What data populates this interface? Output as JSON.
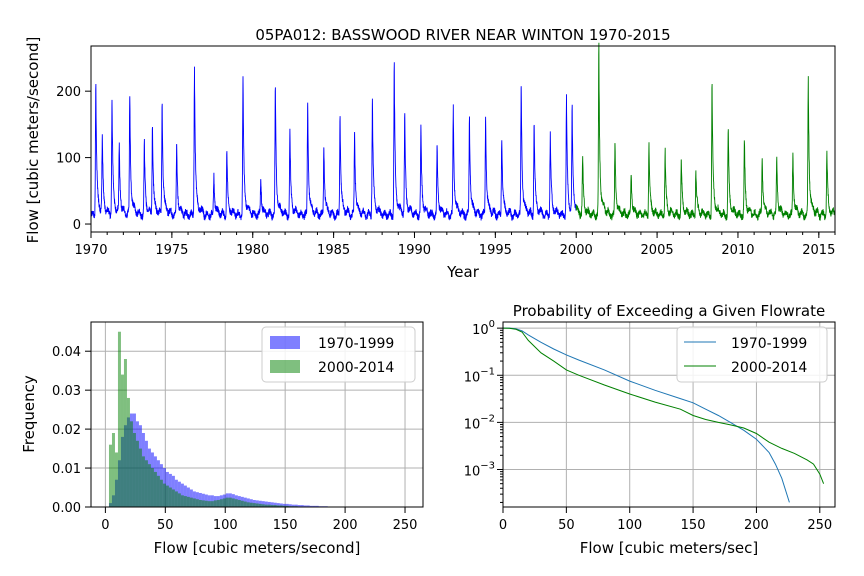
{
  "chart_data": [
    {
      "id": "timeseries",
      "type": "line",
      "title": "05PA012: BASSWOOD RIVER NEAR WINTON 1970-2015",
      "xlabel": "Year",
      "ylabel": "Flow [cubic meters/second]",
      "xlim": [
        1970,
        2016
      ],
      "ylim": [
        -12,
        268
      ],
      "xticks": [
        1970,
        1975,
        1980,
        1985,
        1990,
        1995,
        2000,
        2005,
        2010,
        2015
      ],
      "yticks": [
        0,
        100,
        200
      ],
      "grid": false,
      "series": [
        {
          "color": "#0000ff",
          "start": 1970,
          "end": 2000,
          "peaks": [
            [
              1970.3,
              199
            ],
            [
              1970.7,
              110
            ],
            [
              1971.3,
              172
            ],
            [
              1971.75,
              100
            ],
            [
              1972.4,
              178
            ],
            [
              1973.3,
              110
            ],
            [
              1973.8,
              135
            ],
            [
              1974.4,
              175
            ],
            [
              1975.3,
              105
            ],
            [
              1976.4,
              222
            ],
            [
              1977.6,
              60
            ],
            [
              1978.4,
              95
            ],
            [
              1979.4,
              205
            ],
            [
              1980.5,
              55
            ],
            [
              1981.4,
              188
            ],
            [
              1982.3,
              125
            ],
            [
              1983.4,
              170
            ],
            [
              1984.4,
              105
            ],
            [
              1985.4,
              150
            ],
            [
              1986.3,
              125
            ],
            [
              1987.4,
              175
            ],
            [
              1988.75,
              225
            ],
            [
              1989.4,
              150
            ],
            [
              1990.4,
              130
            ],
            [
              1991.4,
              100
            ],
            [
              1992.4,
              160
            ],
            [
              1993.4,
              150
            ],
            [
              1994.4,
              150
            ],
            [
              1995.4,
              120
            ],
            [
              1996.6,
              197
            ],
            [
              1997.4,
              140
            ],
            [
              1998.4,
              120
            ],
            [
              1999.4,
              175
            ],
            [
              1999.75,
              150
            ]
          ]
        },
        {
          "color": "#008000",
          "start": 2000,
          "end": 2016,
          "peaks": [
            [
              2000.4,
              84
            ],
            [
              2001.4,
              252
            ],
            [
              2002.4,
              110
            ],
            [
              2003.4,
              65
            ],
            [
              2004.5,
              107
            ],
            [
              2005.5,
              95
            ],
            [
              2006.5,
              80
            ],
            [
              2007.4,
              70
            ],
            [
              2008.4,
              197
            ],
            [
              2009.4,
              130
            ],
            [
              2010.4,
              110
            ],
            [
              2011.5,
              90
            ],
            [
              2012.4,
              85
            ],
            [
              2013.4,
              95
            ],
            [
              2014.35,
              205
            ],
            [
              2015.5,
              94
            ]
          ]
        }
      ]
    },
    {
      "id": "histogram",
      "type": "bar",
      "title": "",
      "xlabel": "Flow [cubic meters/second]",
      "ylabel": "Frequency",
      "xlim": [
        -12,
        265
      ],
      "ylim": [
        0,
        0.0475
      ],
      "xticks": [
        0,
        50,
        100,
        150,
        200,
        250
      ],
      "yticks": [
        "0.00",
        "0.01",
        "0.02",
        "0.03",
        "0.04"
      ],
      "grid": true,
      "legend_position": "top-right",
      "series": [
        {
          "name": "1970-1999",
          "color": "#0000ff",
          "opacity": 0.5,
          "bin_start": 3,
          "bin_width": 2.5,
          "values": [
            0.001,
            0.003,
            0.007,
            0.012,
            0.018,
            0.021,
            0.023,
            0.024,
            0.024,
            0.022,
            0.021,
            0.019,
            0.017,
            0.015,
            0.014,
            0.013,
            0.012,
            0.011,
            0.01,
            0.009,
            0.0085,
            0.008,
            0.007,
            0.0065,
            0.006,
            0.0055,
            0.005,
            0.0045,
            0.004,
            0.0038,
            0.0036,
            0.0034,
            0.0032,
            0.003,
            0.003,
            0.0028,
            0.0028,
            0.003,
            0.0032,
            0.0035,
            0.0035,
            0.0033,
            0.003,
            0.0028,
            0.0026,
            0.0024,
            0.0022,
            0.002,
            0.0018,
            0.0017,
            0.0016,
            0.0015,
            0.0014,
            0.0013,
            0.0012,
            0.0011,
            0.001,
            0.0009,
            0.0008,
            0.0008,
            0.0007,
            0.0006,
            0.0006,
            0.0005,
            0.0005,
            0.0004,
            0.0004,
            0.0003,
            0.0003,
            0.0003,
            0.0002,
            0.0002,
            0.0002,
            0.0001,
            0.0001,
            0.0001,
            0.0001,
            0.0001,
            0.0001,
            0.0001,
            0.0001,
            0.0001,
            0,
            0,
            0,
            0,
            0,
            0,
            0.0001
          ]
        },
        {
          "name": "2000-2014",
          "color": "#008000",
          "opacity": 0.5,
          "bin_start": 3,
          "bin_width": 2.5,
          "values": [
            0.016,
            0.019,
            0.014,
            0.045,
            0.034,
            0.038,
            0.028,
            0.022,
            0.019,
            0.017,
            0.015,
            0.013,
            0.012,
            0.011,
            0.01,
            0.009,
            0.008,
            0.007,
            0.006,
            0.0055,
            0.005,
            0.0045,
            0.004,
            0.0035,
            0.003,
            0.0028,
            0.0026,
            0.0024,
            0.0022,
            0.002,
            0.0018,
            0.0017,
            0.0016,
            0.0015,
            0.0015,
            0.0017,
            0.0018,
            0.002,
            0.0022,
            0.0024,
            0.0024,
            0.0022,
            0.002,
            0.0018,
            0.0016,
            0.0014,
            0.0012,
            0.0011,
            0.001,
            0.0009,
            0.0008,
            0.0007,
            0.0006,
            0.0006,
            0.0005,
            0.0005,
            0.0004,
            0.0004,
            0.0003,
            0.0003,
            0.0002,
            0.0002,
            0.0002,
            0.0001,
            0.0001,
            0.0001,
            0.0001,
            0.0001,
            0.0001,
            0,
            0,
            0,
            0,
            0,
            0,
            0,
            0,
            0,
            0,
            0,
            0,
            0,
            0,
            0,
            0,
            0,
            0,
            0,
            0,
            0,
            0,
            0,
            0,
            0,
            0,
            0,
            0,
            0,
            0,
            0.0001
          ]
        }
      ]
    },
    {
      "id": "exceedance",
      "type": "line",
      "title": "Probability of Exceeding a Given Flowrate",
      "xlabel": "Flow [cubic meters/sec]",
      "ylabel": "",
      "xlim": [
        0,
        262
      ],
      "ylim": [
        0.00016,
        1.35
      ],
      "yscale": "log",
      "xticks": [
        0,
        50,
        100,
        150,
        200,
        250
      ],
      "yticks": [
        1,
        0.1,
        0.01,
        0.001
      ],
      "ytick_labels": [
        [
          "10",
          "0"
        ],
        [
          "10",
          "−1"
        ],
        [
          "10",
          "−2"
        ],
        [
          "10",
          "−3"
        ]
      ],
      "grid": true,
      "legend_position": "top-right",
      "series": [
        {
          "name": "1970-1999",
          "color": "#1f77b4",
          "x": [
            0,
            5,
            10,
            15,
            20,
            30,
            40,
            50,
            60,
            80,
            100,
            120,
            140,
            150,
            160,
            170,
            180,
            190,
            200,
            210,
            215,
            220,
            226
          ],
          "y": [
            1,
            1,
            0.97,
            0.88,
            0.72,
            0.5,
            0.36,
            0.27,
            0.21,
            0.13,
            0.075,
            0.048,
            0.032,
            0.026,
            0.019,
            0.014,
            0.0098,
            0.0068,
            0.0044,
            0.0023,
            0.0013,
            0.00065,
            0.0002
          ]
        },
        {
          "name": "2000-2014",
          "color": "#008000",
          "x": [
            0,
            5,
            10,
            15,
            20,
            30,
            40,
            50,
            60,
            80,
            100,
            120,
            140,
            150,
            160,
            170,
            180,
            190,
            200,
            210,
            220,
            230,
            240,
            245,
            250,
            253
          ],
          "y": [
            1,
            0.99,
            0.95,
            0.83,
            0.55,
            0.3,
            0.2,
            0.13,
            0.1,
            0.062,
            0.04,
            0.027,
            0.019,
            0.014,
            0.0115,
            0.01,
            0.0088,
            0.0076,
            0.0058,
            0.0038,
            0.0028,
            0.0022,
            0.0016,
            0.0013,
            0.0008,
            0.0005
          ]
        }
      ]
    }
  ]
}
